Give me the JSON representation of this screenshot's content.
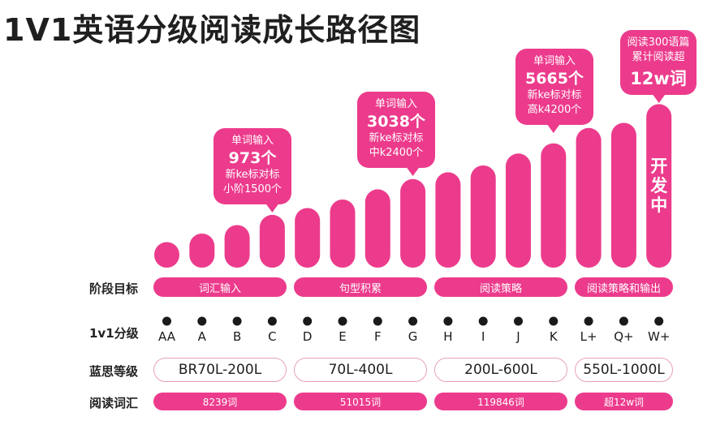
{
  "title": "1V1英语分级阅读成长路径图",
  "row_labels": {
    "stage_goal": "阶段目标",
    "level": "1v1分级",
    "lexile": "蓝思等级",
    "vocab": "阅读词汇"
  },
  "stage_goals": [
    "词汇输入",
    "句型积累",
    "阅读策略",
    "阅读策略和输出"
  ],
  "lexile_ranges": [
    "BR70L-200L",
    "70L-400L",
    "200L-600L",
    "550L-1000L"
  ],
  "vocab_totals": [
    "8239词",
    "51015词",
    "119846词",
    "超12w词"
  ],
  "bar_label_last": "开发中",
  "chart_data": {
    "type": "bar",
    "categories": [
      "AA",
      "A",
      "B",
      "C",
      "D",
      "E",
      "F",
      "G",
      "H",
      "I",
      "J",
      "K",
      "L+",
      "Q+",
      "W+"
    ],
    "values": [
      1.5,
      2.0,
      2.5,
      3.1,
      3.5,
      4.0,
      4.6,
      5.2,
      5.6,
      6.0,
      6.7,
      7.3,
      8.2,
      8.5,
      9.6
    ],
    "ylim": [
      0,
      10
    ],
    "grid": false,
    "colors": {
      "bar": "#ec3b8c",
      "callout": "#ec3b8c",
      "dot": "#1a1a1a"
    },
    "callouts": [
      {
        "category": "C",
        "lines": [
          "单词输入",
          "973个",
          "新ke标对标",
          "小阶1500个"
        ]
      },
      {
        "category": "G",
        "lines": [
          "单词输入",
          "3038个",
          "新ke标对标",
          "中k2400个"
        ]
      },
      {
        "category": "K",
        "lines": [
          "单词输入",
          "5665个",
          "新ke标对标",
          "高k4200个"
        ]
      },
      {
        "category": "W+",
        "lines": [
          "阅读300语篇",
          "累计阅读超",
          "12w词"
        ]
      }
    ]
  }
}
